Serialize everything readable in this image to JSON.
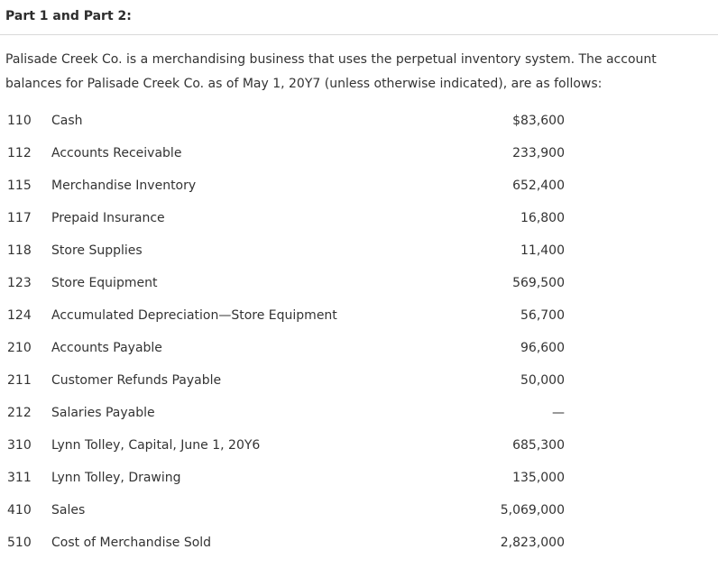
{
  "heading": "Part 1 and Part 2:",
  "intro": "Palisade Creek Co. is a merchandising business that uses the perpetual inventory system. The account balances for Palisade Creek Co. as of May 1, 20Y7 (unless otherwise indicated), are as follows:",
  "accounts": [
    {
      "number": "110",
      "name": "Cash",
      "amount": "$83,600"
    },
    {
      "number": "112",
      "name": "Accounts Receivable",
      "amount": "233,900"
    },
    {
      "number": "115",
      "name": "Merchandise Inventory",
      "amount": "652,400"
    },
    {
      "number": "117",
      "name": "Prepaid Insurance",
      "amount": "16,800"
    },
    {
      "number": "118",
      "name": "Store Supplies",
      "amount": "11,400"
    },
    {
      "number": "123",
      "name": "Store Equipment",
      "amount": "569,500"
    },
    {
      "number": "124",
      "name": "Accumulated Depreciation—Store Equipment",
      "amount": "56,700"
    },
    {
      "number": "210",
      "name": "Accounts Payable",
      "amount": "96,600"
    },
    {
      "number": "211",
      "name": "Customer Refunds Payable",
      "amount": "50,000"
    },
    {
      "number": "212",
      "name": "Salaries Payable",
      "amount": "—"
    },
    {
      "number": "310",
      "name": "Lynn Tolley, Capital, June 1, 20Y6",
      "amount": "685,300"
    },
    {
      "number": "311",
      "name": "Lynn Tolley, Drawing",
      "amount": "135,000"
    },
    {
      "number": "410",
      "name": "Sales",
      "amount": "5,069,000"
    },
    {
      "number": "510",
      "name": "Cost of Merchandise Sold",
      "amount": "2,823,000"
    }
  ]
}
